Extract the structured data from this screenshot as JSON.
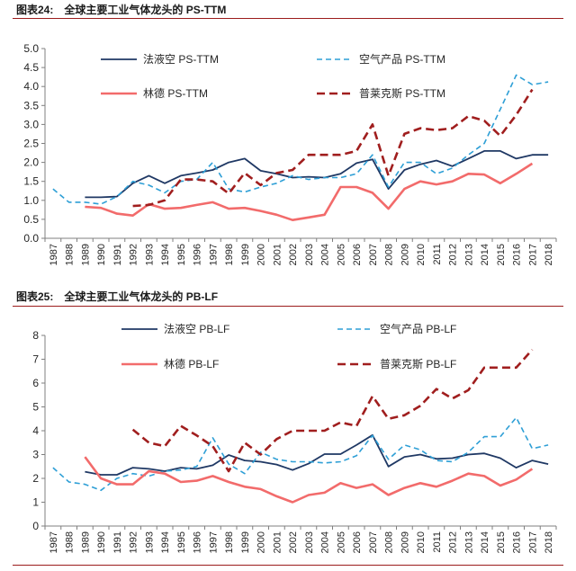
{
  "figures": [
    {
      "number": "图表24:",
      "title": "全球主要工业气体龙头的 PS-TTM"
    },
    {
      "number": "图表25:",
      "title": "全球主要工业气体龙头的 PB-LF"
    }
  ],
  "chart_data": [
    {
      "type": "line",
      "title": "全球主要工业气体龙头的 PS-TTM",
      "x": [
        1987,
        1988,
        1989,
        1990,
        1991,
        1992,
        1993,
        1994,
        1995,
        1996,
        1997,
        1998,
        1999,
        2000,
        2001,
        2002,
        2003,
        2004,
        2005,
        2006,
        2007,
        2008,
        2009,
        2010,
        2011,
        2012,
        2013,
        2014,
        2015,
        2016,
        2017,
        2018
      ],
      "ylim": [
        0,
        5
      ],
      "yticks": [
        0.0,
        0.5,
        1.0,
        1.5,
        2.0,
        2.5,
        3.0,
        3.5,
        4.0,
        4.5,
        5.0
      ],
      "grid": false,
      "legend": "two rows, top",
      "series": [
        {
          "name": "法液空 PS-TTM",
          "color": "#1f3864",
          "dash": "solid",
          "values": [
            null,
            null,
            1.08,
            1.08,
            1.1,
            1.45,
            1.65,
            1.45,
            1.65,
            1.72,
            1.8,
            2.0,
            2.1,
            1.78,
            1.7,
            1.6,
            1.62,
            1.6,
            1.7,
            1.98,
            2.08,
            1.3,
            1.8,
            1.95,
            2.05,
            1.9,
            2.1,
            2.3,
            2.3,
            2.1,
            2.2,
            2.2
          ]
        },
        {
          "name": "空气产品 PS-TTM",
          "color": "#2e9fd6",
          "dash": "dashed",
          "values": [
            1.3,
            0.95,
            0.95,
            0.9,
            1.1,
            1.5,
            1.4,
            1.2,
            1.5,
            1.55,
            2.0,
            1.3,
            1.22,
            1.35,
            1.45,
            1.65,
            1.55,
            1.6,
            1.6,
            1.7,
            2.2,
            1.35,
            2.0,
            2.0,
            1.7,
            1.85,
            2.2,
            2.5,
            3.4,
            4.3,
            4.05,
            4.12
          ]
        },
        {
          "name": "林德 PS-TTM",
          "color": "#f26b6b",
          "dash": "solid",
          "values": [
            null,
            null,
            0.83,
            0.8,
            0.65,
            0.6,
            0.9,
            0.78,
            0.8,
            0.88,
            0.95,
            0.78,
            0.8,
            0.72,
            0.62,
            0.48,
            0.55,
            0.62,
            1.35,
            1.35,
            1.2,
            0.78,
            1.3,
            1.5,
            1.42,
            1.5,
            1.7,
            1.68,
            1.45,
            1.7,
            1.97,
            null
          ]
        },
        {
          "name": "普莱克斯 PS-TTM",
          "color": "#a01e1e",
          "dash": "dashed",
          "values": [
            null,
            null,
            null,
            null,
            null,
            0.85,
            0.88,
            1.0,
            1.55,
            1.55,
            1.5,
            1.18,
            1.72,
            1.4,
            1.72,
            1.8,
            2.2,
            2.2,
            2.2,
            2.3,
            3.0,
            1.65,
            2.75,
            2.9,
            2.85,
            2.9,
            3.22,
            3.1,
            2.7,
            3.25,
            3.92,
            null
          ]
        }
      ]
    },
    {
      "type": "line",
      "title": "全球主要工业气体龙头的 PB-LF",
      "x": [
        1987,
        1988,
        1989,
        1990,
        1991,
        1992,
        1993,
        1994,
        1995,
        1996,
        1997,
        1998,
        1999,
        2000,
        2001,
        2002,
        2003,
        2004,
        2005,
        2006,
        2007,
        2008,
        2009,
        2010,
        2011,
        2012,
        2013,
        2014,
        2015,
        2016,
        2017,
        2018
      ],
      "ylim": [
        0,
        8
      ],
      "yticks": [
        0,
        1,
        2,
        3,
        4,
        5,
        6,
        7,
        8
      ],
      "grid": false,
      "legend": "two rows, top",
      "series": [
        {
          "name": "法液空 PB-LF",
          "color": "#1f3864",
          "dash": "solid",
          "values": [
            null,
            null,
            2.28,
            2.15,
            2.15,
            2.45,
            2.4,
            2.3,
            2.45,
            2.4,
            2.55,
            2.98,
            2.75,
            2.7,
            2.58,
            2.35,
            2.62,
            3.02,
            3.02,
            3.4,
            3.82,
            2.5,
            2.9,
            3.0,
            2.82,
            2.85,
            3.0,
            3.05,
            2.85,
            2.45,
            2.75,
            2.6
          ]
        },
        {
          "name": "空气产品 PB-LF",
          "color": "#2e9fd6",
          "dash": "dashed",
          "values": [
            2.45,
            1.85,
            1.75,
            1.5,
            2.0,
            2.2,
            2.1,
            2.3,
            2.35,
            2.5,
            3.7,
            2.6,
            2.2,
            3.1,
            2.8,
            2.7,
            2.7,
            2.65,
            2.7,
            2.95,
            3.8,
            2.8,
            3.4,
            3.2,
            2.75,
            2.7,
            3.1,
            3.75,
            3.75,
            4.55,
            3.25,
            3.4
          ]
        },
        {
          "name": "林德 PB-LF",
          "color": "#f26b6b",
          "dash": "solid",
          "values": [
            null,
            null,
            2.9,
            2.0,
            1.75,
            1.75,
            2.3,
            2.2,
            1.85,
            1.9,
            2.1,
            1.85,
            1.65,
            1.55,
            1.25,
            1.0,
            1.3,
            1.4,
            1.8,
            1.6,
            1.75,
            1.3,
            1.6,
            1.8,
            1.65,
            1.9,
            2.2,
            2.1,
            1.7,
            1.95,
            2.4,
            null
          ]
        },
        {
          "name": "普莱克斯 PB-LF",
          "color": "#a01e1e",
          "dash": "dashed",
          "values": [
            null,
            null,
            null,
            null,
            null,
            4.05,
            3.5,
            3.35,
            4.2,
            3.8,
            3.35,
            2.3,
            3.5,
            3.0,
            3.65,
            4.0,
            4.0,
            4.0,
            4.35,
            4.2,
            5.45,
            4.5,
            4.65,
            5.05,
            5.75,
            5.35,
            5.7,
            6.65,
            6.65,
            6.65,
            7.4,
            null
          ]
        }
      ]
    }
  ]
}
